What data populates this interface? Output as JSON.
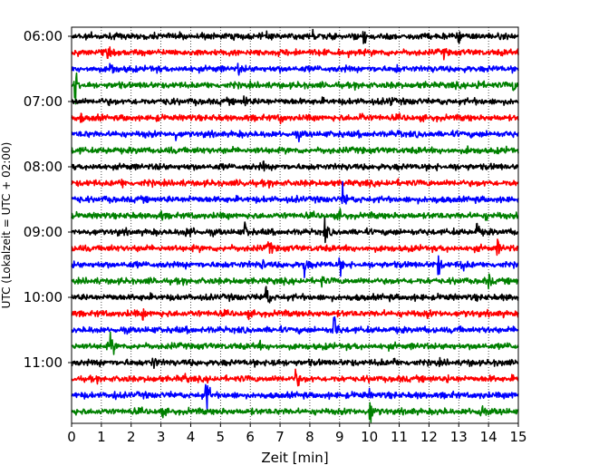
{
  "chart_data": {
    "type": "line",
    "xlabel": "Zeit  [min]",
    "ylabel": "UTC (Lokalzeit = UTC + 02:00)",
    "xlim": [
      0,
      15
    ],
    "x_ticks": [
      "0",
      "1",
      "2",
      "3",
      "4",
      "5",
      "6",
      "7",
      "8",
      "9",
      "10",
      "11",
      "12",
      "13",
      "14",
      "15"
    ],
    "y_tick_labels": [
      "06:00",
      "07:00",
      "08:00",
      "09:00",
      "10:00",
      "11:00"
    ],
    "grid": "vertical dotted",
    "trace_interval_min": 15,
    "trace_count": 24,
    "first_trace_time": "06:00",
    "trace_colors": [
      "#000000",
      "#ff0000",
      "#0000ff",
      "#008000"
    ],
    "traces": [
      {
        "time": "06:00",
        "events": [
          [
            8.1,
            0.45
          ],
          [
            9.8,
            0.55
          ],
          [
            13.0,
            0.45
          ],
          [
            6.5,
            0.3
          ]
        ]
      },
      {
        "time": "06:15",
        "events": [
          [
            1.2,
            0.4
          ],
          [
            7.5,
            0.4
          ],
          [
            12.5,
            0.35
          ]
        ]
      },
      {
        "time": "06:30",
        "events": [
          [
            1.3,
            0.6
          ],
          [
            5.6,
            0.4
          ],
          [
            10.9,
            0.35
          ]
        ]
      },
      {
        "time": "06:45",
        "events": [
          [
            0.1,
            1.0
          ],
          [
            13.6,
            0.5
          ],
          [
            14.8,
            0.45
          ]
        ]
      },
      {
        "time": "07:00",
        "events": [
          [
            5.8,
            0.5
          ],
          [
            3.3,
            0.35
          ],
          [
            10.7,
            0.4
          ]
        ]
      },
      {
        "time": "07:15",
        "events": [
          [
            7.0,
            0.45
          ],
          [
            9.7,
            0.45
          ],
          [
            0.3,
            0.35
          ]
        ]
      },
      {
        "time": "07:30",
        "events": [
          [
            3.5,
            0.35
          ],
          [
            7.6,
            0.35
          ],
          [
            11.0,
            0.3
          ]
        ]
      },
      {
        "time": "07:45",
        "events": [
          [
            6.2,
            0.3
          ],
          [
            13.3,
            0.3
          ]
        ]
      },
      {
        "time": "08:00",
        "events": [
          [
            6.4,
            0.4
          ],
          [
            12.8,
            0.35
          ]
        ]
      },
      {
        "time": "08:15",
        "events": [
          [
            1.7,
            0.35
          ],
          [
            5.8,
            0.3
          ],
          [
            10.6,
            0.3
          ]
        ]
      },
      {
        "time": "08:30",
        "events": [
          [
            9.1,
            0.75
          ],
          [
            3.9,
            0.3
          ],
          [
            12.2,
            0.3
          ]
        ]
      },
      {
        "time": "08:45",
        "events": [
          [
            3.0,
            0.35
          ],
          [
            9.0,
            0.35
          ],
          [
            13.9,
            0.3
          ]
        ]
      },
      {
        "time": "09:00",
        "events": [
          [
            5.8,
            0.6
          ],
          [
            8.5,
            0.65
          ],
          [
            13.6,
            0.6
          ],
          [
            4.0,
            0.45
          ],
          [
            3.8,
            0.4
          ]
        ]
      },
      {
        "time": "09:15",
        "events": [
          [
            6.6,
            0.6
          ],
          [
            14.3,
            0.5
          ]
        ]
      },
      {
        "time": "09:30",
        "events": [
          [
            7.8,
            0.7
          ],
          [
            9.0,
            0.55
          ],
          [
            12.3,
            0.6
          ],
          [
            13.1,
            0.5
          ],
          [
            6.4,
            0.45
          ]
        ]
      },
      {
        "time": "09:45",
        "events": [
          [
            14.0,
            0.45
          ],
          [
            8.4,
            0.35
          ],
          [
            2.8,
            0.35
          ]
        ]
      },
      {
        "time": "10:00",
        "events": [
          [
            6.5,
            0.9
          ],
          [
            2.5,
            0.3
          ]
        ]
      },
      {
        "time": "10:15",
        "events": [
          [
            2.4,
            0.4
          ],
          [
            5.9,
            0.3
          ],
          [
            11.9,
            0.35
          ]
        ]
      },
      {
        "time": "10:30",
        "events": [
          [
            8.8,
            1.0
          ],
          [
            4.0,
            0.3
          ]
        ]
      },
      {
        "time": "10:45",
        "events": [
          [
            1.3,
            0.75
          ],
          [
            6.3,
            0.3
          ]
        ]
      },
      {
        "time": "11:00",
        "events": [
          [
            2.7,
            0.55
          ],
          [
            6.7,
            0.65
          ],
          [
            10.8,
            0.35
          ]
        ]
      },
      {
        "time": "11:15",
        "events": [
          [
            7.5,
            0.7
          ],
          [
            3.8,
            0.4
          ],
          [
            12.6,
            0.35
          ]
        ]
      },
      {
        "time": "11:30",
        "events": [
          [
            4.5,
            1.0
          ],
          [
            1.4,
            0.35
          ],
          [
            10.0,
            0.3
          ]
        ]
      },
      {
        "time": "11:45",
        "events": [
          [
            10.0,
            0.85
          ],
          [
            13.7,
            0.7
          ],
          [
            3.0,
            0.35
          ]
        ]
      }
    ]
  }
}
